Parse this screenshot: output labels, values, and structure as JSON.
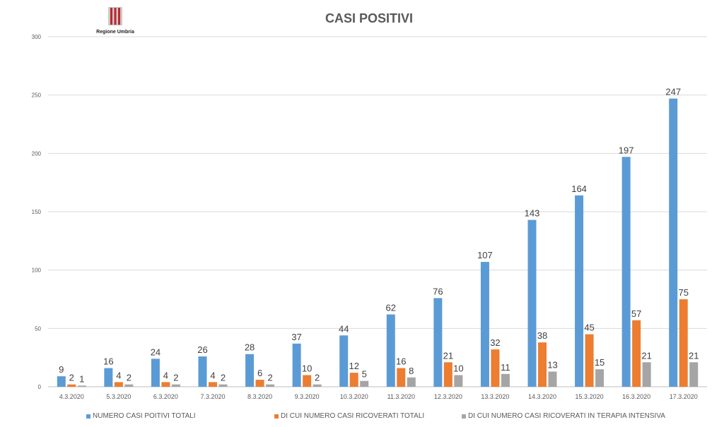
{
  "logo": {
    "text": "Regione Umbria"
  },
  "chart_data": {
    "type": "bar",
    "title": "CASI POSITIVI",
    "categories": [
      "4.3.2020",
      "5.3.2020",
      "6.3.2020",
      "7.3.2020",
      "8.3.2020",
      "9.3.2020",
      "10.3.2020",
      "11.3.2020",
      "12.3.2020",
      "13.3.2020",
      "14.3.2020",
      "15.3.2020",
      "16.3.2020",
      "17.3.2020"
    ],
    "series": [
      {
        "name": "NUMERO CASI POITIVI TOTALI",
        "color": "#5B9BD5",
        "values": [
          9,
          16,
          24,
          26,
          28,
          37,
          44,
          62,
          76,
          107,
          143,
          164,
          197,
          247
        ]
      },
      {
        "name": "DI CUI NUMERO CASI RICOVERATI TOTALI",
        "color": "#ED7D31",
        "values": [
          2,
          4,
          4,
          4,
          6,
          10,
          12,
          16,
          21,
          32,
          38,
          45,
          57,
          75
        ]
      },
      {
        "name": "DI CUI NUMERO CASI RICOVERATI IN TERAPIA INTENSIVA",
        "color": "#A5A5A5",
        "values": [
          1,
          2,
          2,
          2,
          2,
          2,
          5,
          8,
          10,
          11,
          13,
          15,
          21,
          21
        ]
      }
    ],
    "yticks": [
      0,
      50,
      100,
      150,
      200,
      250,
      300
    ],
    "ylim": [
      0,
      300
    ],
    "grid": true,
    "legend": "bottom"
  }
}
